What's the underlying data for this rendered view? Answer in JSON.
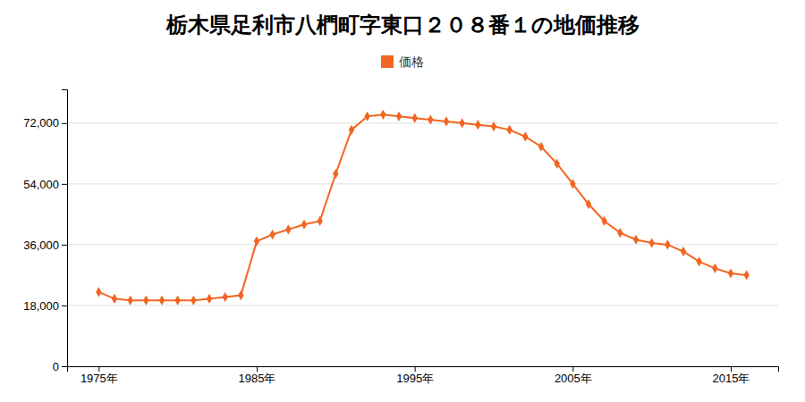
{
  "chart_data": {
    "type": "line",
    "title": "栃木県足利市八椚町字東口２０８番１の地価推移",
    "x": [
      1975,
      1976,
      1977,
      1978,
      1979,
      1980,
      1981,
      1982,
      1983,
      1984,
      1985,
      1986,
      1987,
      1988,
      1989,
      1990,
      1991,
      1992,
      1993,
      1994,
      1995,
      1996,
      1997,
      1998,
      1999,
      2000,
      2001,
      2002,
      2003,
      2004,
      2005,
      2006,
      2007,
      2008,
      2009,
      2010,
      2011,
      2012,
      2013,
      2014,
      2015,
      2016
    ],
    "series": [
      {
        "name": "価格",
        "color": "#f26522",
        "marker": "diamond",
        "values": [
          22000,
          20000,
          19500,
          19500,
          19500,
          19500,
          19500,
          20000,
          20500,
          21000,
          37000,
          39000,
          40500,
          42000,
          43000,
          57000,
          70000,
          74000,
          74500,
          74000,
          73500,
          73000,
          72500,
          72000,
          71500,
          71000,
          70000,
          68000,
          65000,
          60000,
          54000,
          48000,
          43000,
          39500,
          37500,
          36500,
          36000,
          34000,
          31000,
          29000,
          27500,
          27000
        ]
      }
    ],
    "xlim": [
      1973,
      2018
    ],
    "xticks": [
      {
        "value": 1975,
        "label": "1975年"
      },
      {
        "value": 1985,
        "label": "1985年"
      },
      {
        "value": 1995,
        "label": "1995年"
      },
      {
        "value": 2005,
        "label": "2005年"
      },
      {
        "value": 2015,
        "label": "2015年"
      }
    ],
    "ylim": [
      0,
      82000
    ],
    "yticks": [
      0,
      {
        "value": 18000,
        "label": "18,000"
      },
      {
        "value": 36000,
        "label": "36,000"
      },
      {
        "value": 54000,
        "label": "54,000"
      },
      {
        "value": 72000,
        "label": "72,000"
      }
    ],
    "grid": true,
    "legend": "top"
  }
}
